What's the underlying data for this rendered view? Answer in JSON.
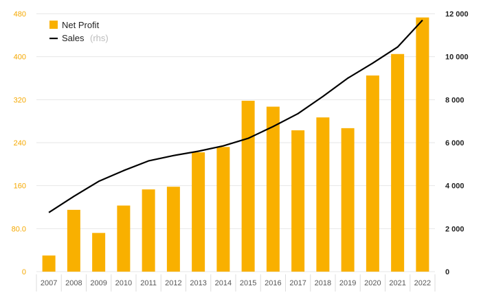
{
  "chart_data": {
    "type": "bar",
    "categories": [
      "2007",
      "2008",
      "2009",
      "2010",
      "2011",
      "2012",
      "2013",
      "2014",
      "2015",
      "2016",
      "2017",
      "2018",
      "2019",
      "2020",
      "2021",
      "2022"
    ],
    "series": [
      {
        "name": "Net Profit",
        "type": "bar",
        "axis": "left",
        "color": "#f9b000",
        "values": [
          30,
          115,
          72,
          123,
          153,
          158,
          222,
          232,
          318,
          307,
          263,
          287,
          267,
          365,
          405,
          473
        ]
      },
      {
        "name": "Sales",
        "name_note": "(rhs)",
        "type": "line",
        "axis": "right",
        "color": "#000000",
        "values": [
          2750,
          3500,
          4200,
          4700,
          5150,
          5400,
          5600,
          5850,
          6200,
          6750,
          7350,
          8150,
          9000,
          9700,
          10450,
          11700
        ]
      }
    ],
    "left_axis": {
      "range": [
        0,
        480
      ],
      "ticks": [
        0,
        80,
        160,
        240,
        320,
        400,
        480
      ],
      "tick_labels": [
        "0",
        "80.0",
        "160",
        "240",
        "320",
        "400",
        "480"
      ],
      "color": "#f5a800"
    },
    "right_axis": {
      "range": [
        0,
        12000
      ],
      "ticks": [
        0,
        2000,
        4000,
        6000,
        8000,
        10000,
        12000
      ],
      "tick_labels": [
        "0",
        "2 000",
        "4 000",
        "6 000",
        "8 000",
        "10 000",
        "12 000"
      ]
    },
    "grid": "horizontal",
    "legend": "top-left"
  }
}
